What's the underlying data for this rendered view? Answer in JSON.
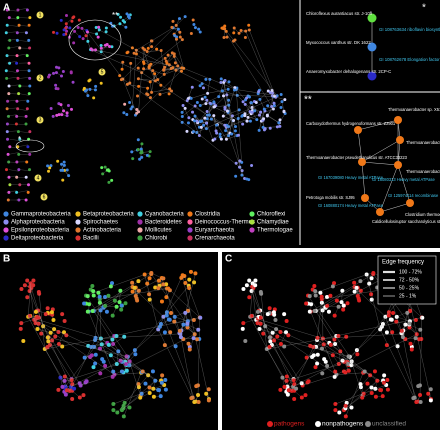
{
  "panel_labels": [
    "A",
    "B",
    "C"
  ],
  "taxa_legend": [
    {
      "name": "Gammaproteobacteria",
      "color": "#3f86e0"
    },
    {
      "name": "Alphaproteobacteria",
      "color": "#8c8cf0"
    },
    {
      "name": "Epsilonproteobacteria",
      "color": "#e050d8"
    },
    {
      "name": "Deltaproteobacteria",
      "color": "#2a2ac8"
    },
    {
      "name": "Betaproteobacteria",
      "color": "#f0c020"
    },
    {
      "name": "Spirochaetes",
      "color": "#d8d8ff"
    },
    {
      "name": "Actinobacteria",
      "color": "#e07830"
    },
    {
      "name": "Bacilli",
      "color": "#d83030"
    },
    {
      "name": "Cyanobacteria",
      "color": "#40d0e0"
    },
    {
      "name": "Bacteroidetes",
      "color": "#a030a8"
    },
    {
      "name": "Mollicutes",
      "color": "#f0a8a8"
    },
    {
      "name": "Chlorobi",
      "color": "#3ca040"
    },
    {
      "name": "Clostridia",
      "color": "#f07818"
    },
    {
      "name": "Deinococcus-Thermus",
      "color": "#ff60a0"
    },
    {
      "name": "Euryarchaeota",
      "color": "#9840c8"
    },
    {
      "name": "Crenarchaeota",
      "color": "#c83060"
    },
    {
      "name": "Chloroflexi",
      "color": "#60f060"
    },
    {
      "name": "Chlamydiae",
      "color": "#a8e040"
    },
    {
      "name": "Thermotogae",
      "color": "#c040c0"
    }
  ],
  "inset_single": {
    "label": "*",
    "organisms": [
      "Chloroflexus aurantiacus str. J-10fl",
      "Myxococcus xanthus str. DK 1622",
      "Anaeromyxobacter dehalogenans str. 2CP-C"
    ],
    "genes": [
      "GI 108763634 riboflavin biosynthesis protein",
      "GI 108762678 Elongation factor Tu"
    ]
  },
  "inset_double": {
    "label": "**",
    "organisms": [
      "Carboxydothermus hydrogenoformans str. Z2901",
      "Thermoanaerobacter sp. X514",
      "Thermoanaerobacter tengcongensis",
      "Thermoanaerobacter pseudethanolicus str. ATCC33223",
      "Thermoanaerobacter sp. X514",
      "Petrotoga mobilis str. SJ95",
      "Caldicellulosiruptor saccharolyticus str. DSM8903",
      "Clostridium thermocellum str. ATCC27405"
    ],
    "genes": [
      "GI 167039080 Heavy metal ATPase",
      "GI 16080313 Heavy metal ATPase",
      "GI 160880174 Heavy metal ATPase",
      "GI 125974114 recombinase"
    ]
  },
  "cluster_labels": [
    "1",
    "2",
    "3",
    "4",
    "5",
    "6"
  ],
  "edge_frequency": {
    "title": "Edge frequency",
    "levels": [
      "100 - 72%",
      "72 - 50%",
      "50 - 25%",
      "25 - 1%"
    ]
  },
  "pathogen_legend": [
    {
      "name": "pathogens",
      "color": "#e02020"
    },
    {
      "name": "nonpathogens",
      "color": "#ffffff"
    },
    {
      "name": "unclassified",
      "color": "#8a8a8a"
    }
  ]
}
